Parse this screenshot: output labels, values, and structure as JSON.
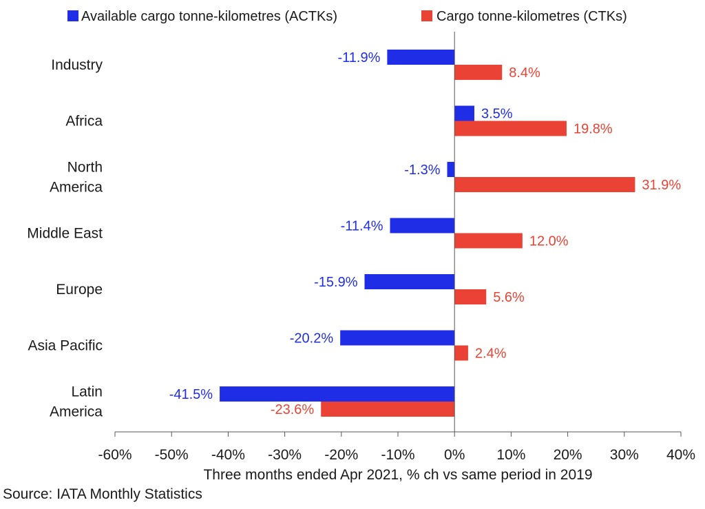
{
  "chart_data": {
    "type": "bar",
    "orientation": "horizontal",
    "categories": [
      "Industry",
      "Africa",
      "North America",
      "Middle East",
      "Europe",
      "Asia Pacific",
      "Latin America"
    ],
    "category_labels": [
      [
        "Industry"
      ],
      [
        "Africa"
      ],
      [
        "North",
        "America"
      ],
      [
        "Middle East"
      ],
      [
        "Europe"
      ],
      [
        "Asia Pacific"
      ],
      [
        "Latin",
        "America"
      ]
    ],
    "series": [
      {
        "name": "Available cargo tonne-kilometres (ACTKs)",
        "color": "#1f2ee6",
        "values": [
          -11.9,
          3.5,
          -1.3,
          -11.4,
          -15.9,
          -20.2,
          -41.5
        ],
        "labels": [
          "-11.9%",
          "3.5%",
          "-1.3%",
          "-11.4%",
          "-15.9%",
          "-20.2%",
          "-41.5%"
        ]
      },
      {
        "name": "Cargo tonne-kilometres (CTKs)",
        "color": "#ea4335",
        "values": [
          8.4,
          19.8,
          31.9,
          12.0,
          5.6,
          2.4,
          -23.6
        ],
        "labels": [
          "8.4%",
          "19.8%",
          "31.9%",
          "12.0%",
          "5.6%",
          "2.4%",
          "-23.6%"
        ]
      }
    ],
    "xlim": [
      -60,
      40
    ],
    "xticks": [
      -60,
      -50,
      -40,
      -30,
      -20,
      -10,
      0,
      10,
      20,
      30,
      40
    ],
    "xtick_labels": [
      "-60%",
      "-50%",
      "-40%",
      "-30%",
      "-20%",
      "-10%",
      "0%",
      "10%",
      "20%",
      "30%",
      "40%"
    ],
    "xlabel": "Three months ended Apr 2021, % ch vs same period in 2019",
    "legend_position": "top",
    "grid": false,
    "source": "Source: IATA Monthly Statistics"
  }
}
